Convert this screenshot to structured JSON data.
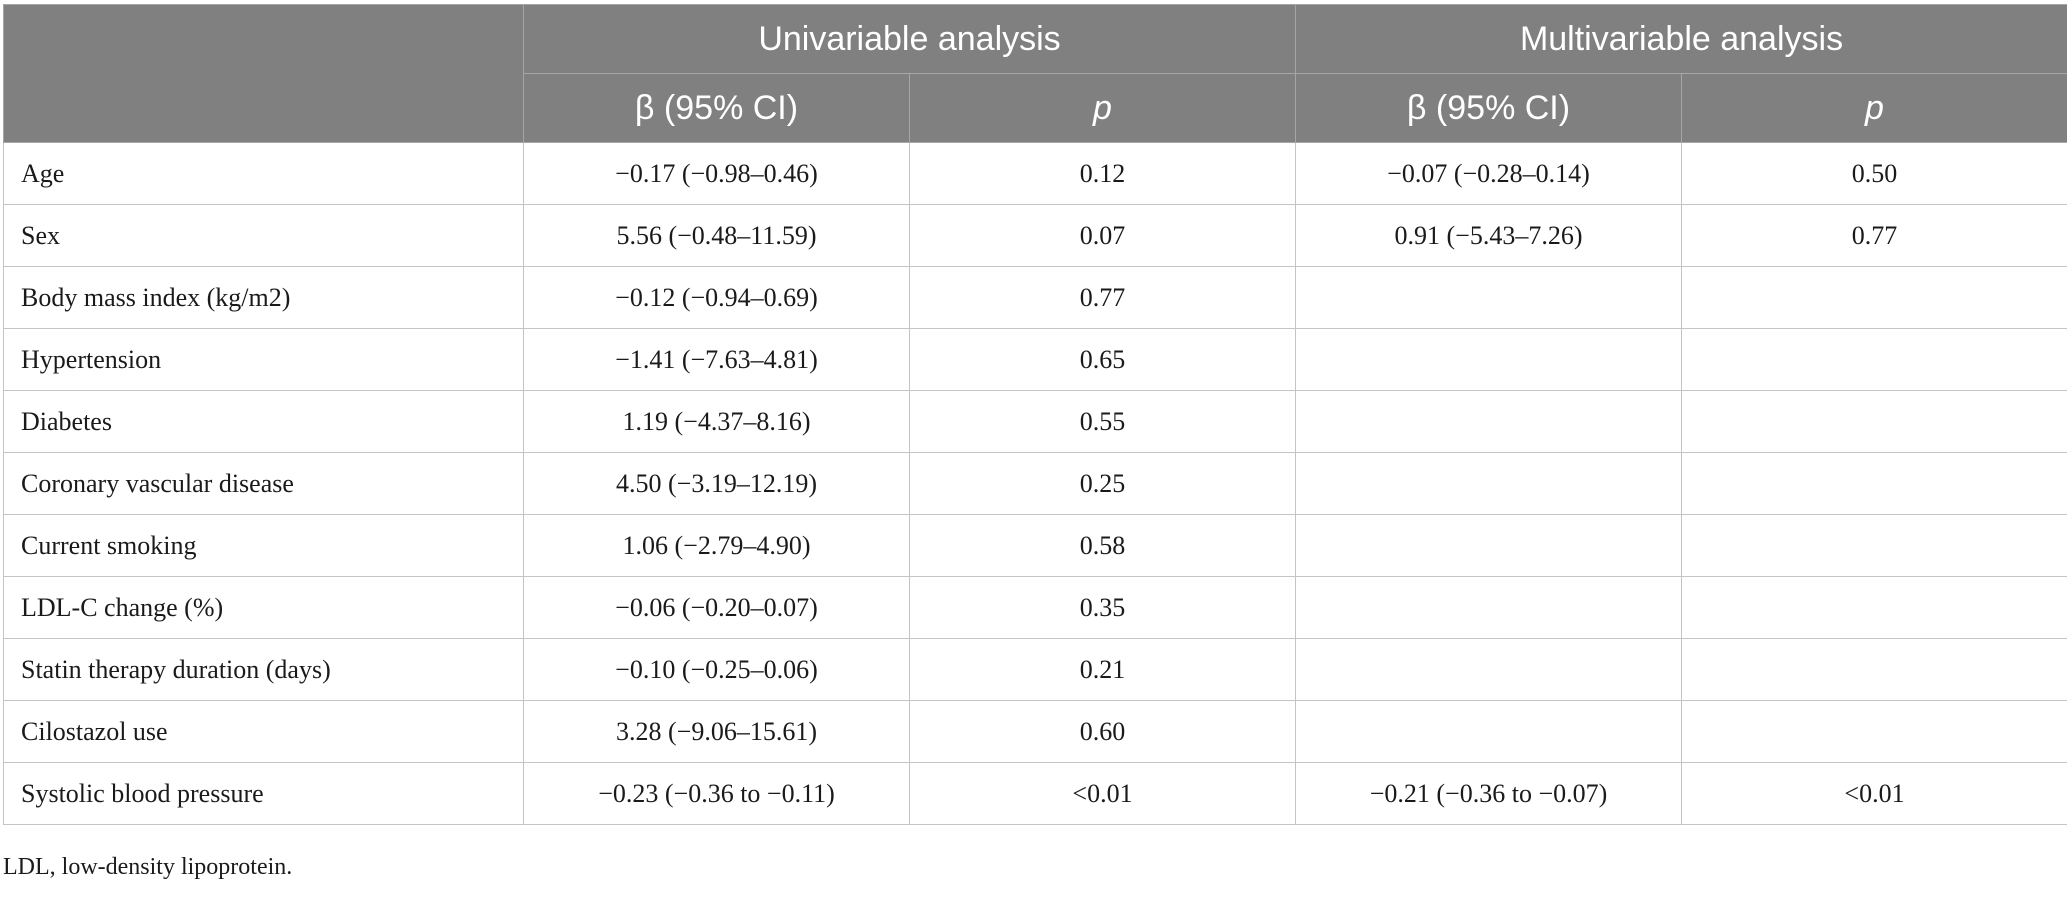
{
  "header": {
    "group_univariable": "Univariable analysis",
    "group_multivariable": "Multivariable analysis",
    "beta_label": "β (95% CI)",
    "p_label": "p"
  },
  "rows": [
    {
      "variable": "Age",
      "uni_beta": "−0.17 (−0.98–0.46)",
      "uni_p": "0.12",
      "multi_beta": "−0.07 (−0.28–0.14)",
      "multi_p": "0.50"
    },
    {
      "variable": "Sex",
      "uni_beta": "5.56 (−0.48–11.59)",
      "uni_p": "0.07",
      "multi_beta": "0.91 (−5.43–7.26)",
      "multi_p": "0.77"
    },
    {
      "variable": "Body mass index (kg/m2)",
      "uni_beta": "−0.12 (−0.94–0.69)",
      "uni_p": "0.77",
      "multi_beta": "",
      "multi_p": ""
    },
    {
      "variable": "Hypertension",
      "uni_beta": "−1.41 (−7.63–4.81)",
      "uni_p": "0.65",
      "multi_beta": "",
      "multi_p": ""
    },
    {
      "variable": "Diabetes",
      "uni_beta": "1.19 (−4.37–8.16)",
      "uni_p": "0.55",
      "multi_beta": "",
      "multi_p": ""
    },
    {
      "variable": "Coronary vascular disease",
      "uni_beta": "4.50 (−3.19–12.19)",
      "uni_p": "0.25",
      "multi_beta": "",
      "multi_p": ""
    },
    {
      "variable": "Current smoking",
      "uni_beta": "1.06 (−2.79–4.90)",
      "uni_p": "0.58",
      "multi_beta": "",
      "multi_p": ""
    },
    {
      "variable": "LDL-C change (%)",
      "uni_beta": "−0.06 (−0.20–0.07)",
      "uni_p": "0.35",
      "multi_beta": "",
      "multi_p": ""
    },
    {
      "variable": "Statin therapy duration (days)",
      "uni_beta": "−0.10 (−0.25–0.06)",
      "uni_p": "0.21",
      "multi_beta": "",
      "multi_p": ""
    },
    {
      "variable": "Cilostazol use",
      "uni_beta": "3.28 (−9.06–15.61)",
      "uni_p": "0.60",
      "multi_beta": "",
      "multi_p": ""
    },
    {
      "variable": "Systolic blood pressure",
      "uni_beta": "−0.23 (−0.36 to −0.11)",
      "uni_p": "<0.01",
      "multi_beta": "−0.21 (−0.36 to −0.07)",
      "multi_p": "<0.01"
    }
  ],
  "footnote": "LDL, low-density lipoprotein.",
  "colors": {
    "header_bg": "#808080",
    "header_text": "#ffffff",
    "grid_line": "#c4c4c4"
  }
}
